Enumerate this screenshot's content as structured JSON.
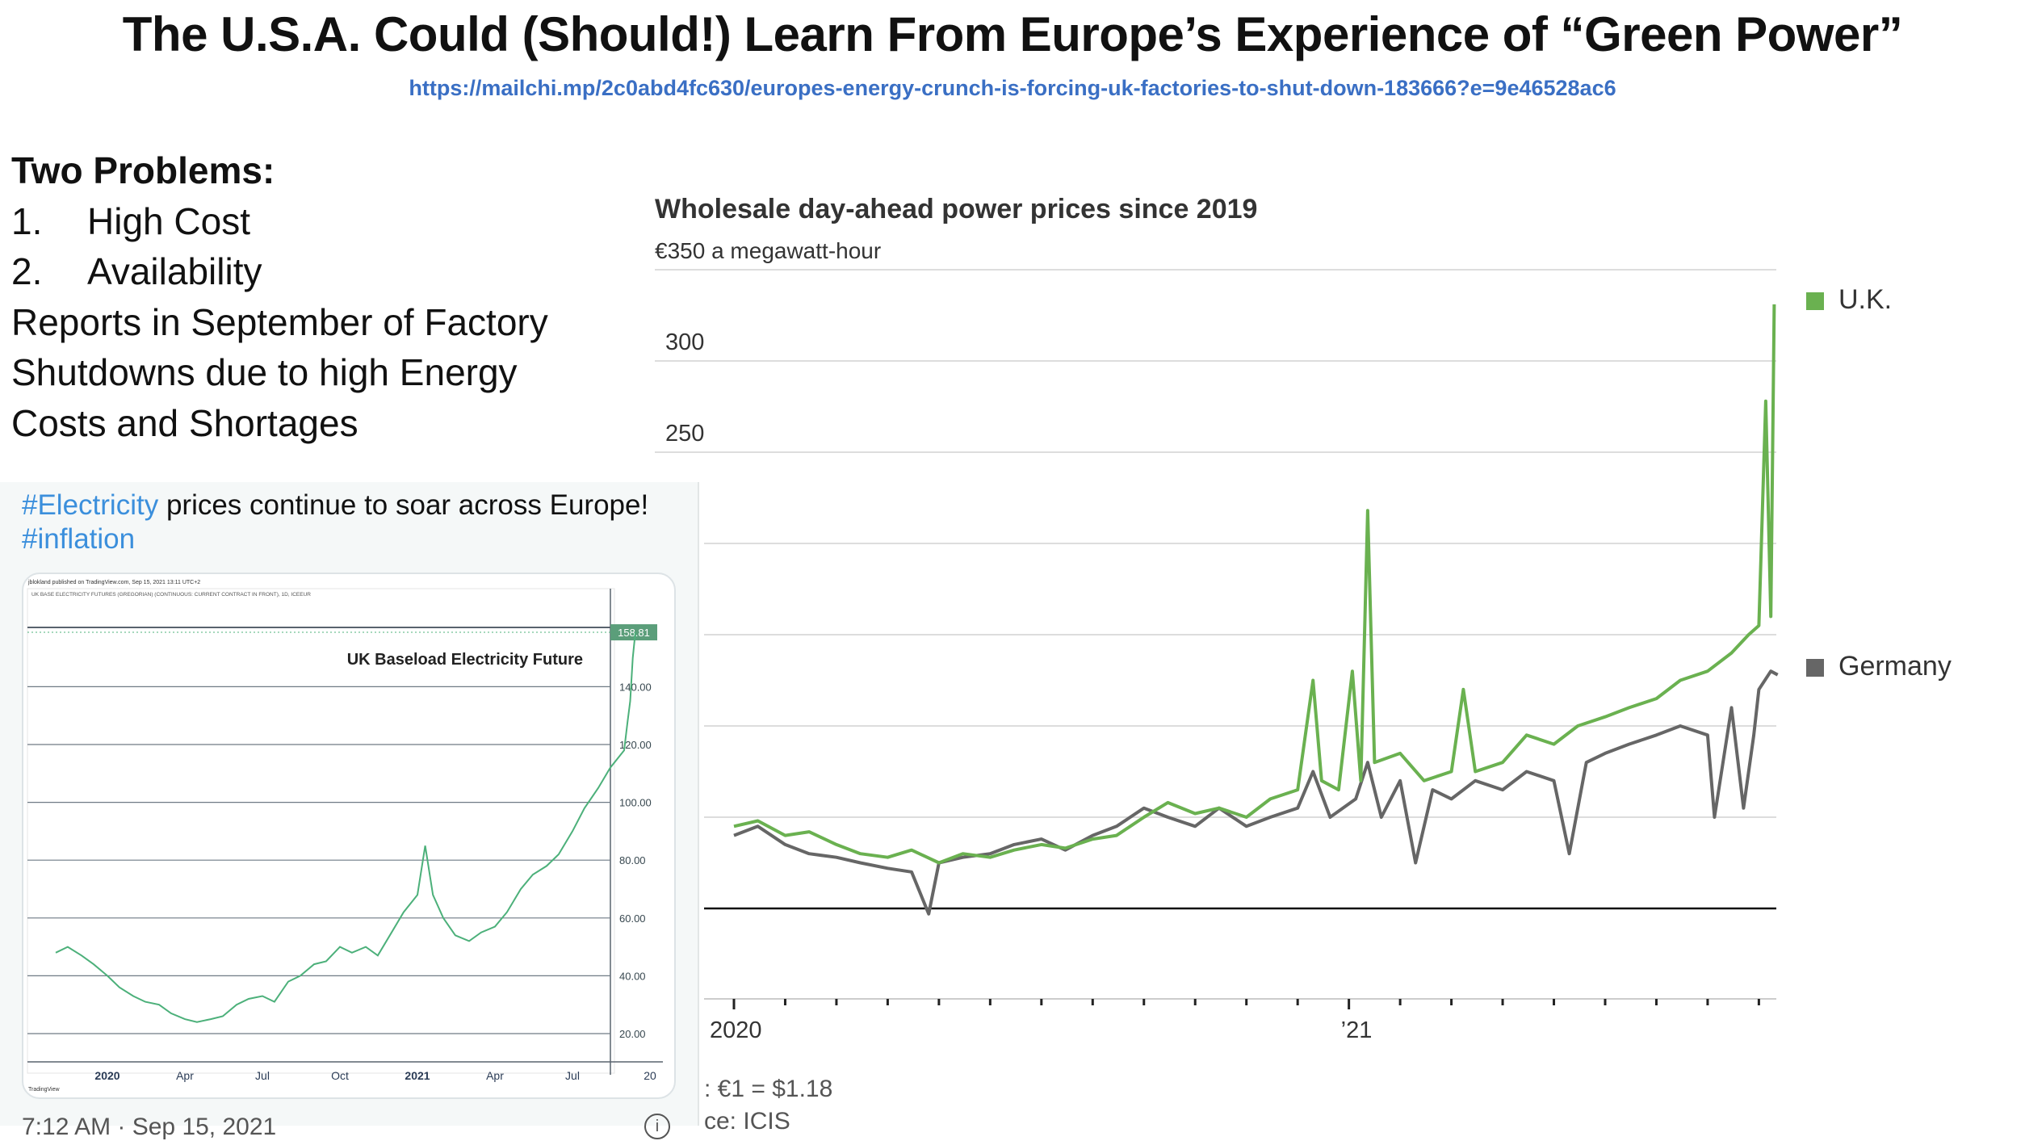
{
  "slide": {
    "title": "The U.S.A. Could (Should!) Learn From Europe’s Experience of “Green Power”",
    "url": "https://mailchi.mp/2c0abd4fc630/europes-energy-crunch-is-forcing-uk-factories-to-shut-down-183666?e=9e46528ac6",
    "problems_heading": "Two Problems:",
    "problems": [
      {
        "num": "1.",
        "text": "High Cost"
      },
      {
        "num": "2.",
        "text": "Availability"
      }
    ],
    "report_lines": [
      "Reports in September of Factory",
      "Shutdowns due to high Energy",
      "Costs and Shortages"
    ]
  },
  "tweet": {
    "hashtag1": "#Electricity",
    "text": " prices continue to soar across Europe!",
    "hashtag2": "#inflation",
    "time": "7:12 AM · Sep 15, 2021",
    "info_icon": "info-icon"
  },
  "footer": {
    "exchange": ": €1 = $1.18",
    "source": "ce: ICIS"
  },
  "chart_data": [
    {
      "type": "line",
      "title": "Wholesale day-ahead power prices since 2019",
      "ylabel": "€350 a megawatt-hour",
      "ylim": [
        0,
        350
      ],
      "y_ticks": [
        0,
        50,
        100,
        150,
        200,
        250,
        300,
        350
      ],
      "y_tick_labels": [
        "",
        "",
        "",
        "",
        "",
        "250",
        "300",
        "€350 a megawatt-hour"
      ],
      "x_tick_labels": [
        {
          "date": "2020-01-01",
          "label": "2020"
        },
        {
          "date": "2021-01-01",
          "label": "’21"
        }
      ],
      "grid": true,
      "legend": "right",
      "series": [
        {
          "name": "U.K.",
          "color": "#6ab150",
          "points": [
            [
              "2020-01-01",
              45
            ],
            [
              "2020-01-15",
              48
            ],
            [
              "2020-02-01",
              40
            ],
            [
              "2020-02-15",
              42
            ],
            [
              "2020-03-01",
              35
            ],
            [
              "2020-03-15",
              30
            ],
            [
              "2020-04-01",
              28
            ],
            [
              "2020-04-15",
              32
            ],
            [
              "2020-05-01",
              25
            ],
            [
              "2020-05-15",
              30
            ],
            [
              "2020-06-01",
              28
            ],
            [
              "2020-06-15",
              32
            ],
            [
              "2020-07-01",
              35
            ],
            [
              "2020-07-15",
              33
            ],
            [
              "2020-08-01",
              38
            ],
            [
              "2020-08-15",
              40
            ],
            [
              "2020-09-01",
              50
            ],
            [
              "2020-09-15",
              58
            ],
            [
              "2020-10-01",
              52
            ],
            [
              "2020-10-15",
              55
            ],
            [
              "2020-11-01",
              50
            ],
            [
              "2020-11-15",
              60
            ],
            [
              "2020-12-01",
              65
            ],
            [
              "2020-12-10",
              125
            ],
            [
              "2020-12-15",
              70
            ],
            [
              "2020-12-25",
              65
            ],
            [
              "2021-01-03",
              130
            ],
            [
              "2021-01-08",
              70
            ],
            [
              "2021-01-12",
              218
            ],
            [
              "2021-01-16",
              80
            ],
            [
              "2021-02-01",
              85
            ],
            [
              "2021-02-15",
              70
            ],
            [
              "2021-03-01",
              75
            ],
            [
              "2021-03-08",
              120
            ],
            [
              "2021-03-15",
              75
            ],
            [
              "2021-04-01",
              80
            ],
            [
              "2021-04-15",
              95
            ],
            [
              "2021-05-01",
              90
            ],
            [
              "2021-05-15",
              100
            ],
            [
              "2021-06-01",
              105
            ],
            [
              "2021-06-15",
              110
            ],
            [
              "2021-07-01",
              115
            ],
            [
              "2021-07-15",
              125
            ],
            [
              "2021-08-01",
              130
            ],
            [
              "2021-08-15",
              140
            ],
            [
              "2021-08-25",
              150
            ],
            [
              "2021-09-01",
              155
            ],
            [
              "2021-09-05",
              278
            ],
            [
              "2021-09-08",
              160
            ],
            [
              "2021-09-10",
              331
            ]
          ]
        },
        {
          "name": "Germany",
          "color": "#666666",
          "points": [
            [
              "2020-01-01",
              40
            ],
            [
              "2020-01-15",
              45
            ],
            [
              "2020-02-01",
              35
            ],
            [
              "2020-02-15",
              30
            ],
            [
              "2020-03-01",
              28
            ],
            [
              "2020-03-15",
              25
            ],
            [
              "2020-04-01",
              22
            ],
            [
              "2020-04-15",
              20
            ],
            [
              "2020-04-25",
              -3
            ],
            [
              "2020-05-01",
              25
            ],
            [
              "2020-05-15",
              28
            ],
            [
              "2020-06-01",
              30
            ],
            [
              "2020-06-15",
              35
            ],
            [
              "2020-07-01",
              38
            ],
            [
              "2020-07-15",
              32
            ],
            [
              "2020-08-01",
              40
            ],
            [
              "2020-08-15",
              45
            ],
            [
              "2020-09-01",
              55
            ],
            [
              "2020-09-15",
              50
            ],
            [
              "2020-10-01",
              45
            ],
            [
              "2020-10-15",
              55
            ],
            [
              "2020-11-01",
              45
            ],
            [
              "2020-11-15",
              50
            ],
            [
              "2020-12-01",
              55
            ],
            [
              "2020-12-10",
              75
            ],
            [
              "2020-12-20",
              50
            ],
            [
              "2021-01-05",
              60
            ],
            [
              "2021-01-12",
              80
            ],
            [
              "2021-01-20",
              50
            ],
            [
              "2021-02-01",
              70
            ],
            [
              "2021-02-10",
              25
            ],
            [
              "2021-02-20",
              65
            ],
            [
              "2021-03-01",
              60
            ],
            [
              "2021-03-15",
              70
            ],
            [
              "2021-04-01",
              65
            ],
            [
              "2021-04-15",
              75
            ],
            [
              "2021-05-01",
              70
            ],
            [
              "2021-05-10",
              30
            ],
            [
              "2021-05-20",
              80
            ],
            [
              "2021-06-01",
              85
            ],
            [
              "2021-06-15",
              90
            ],
            [
              "2021-07-01",
              95
            ],
            [
              "2021-07-15",
              100
            ],
            [
              "2021-08-01",
              95
            ],
            [
              "2021-08-05",
              50
            ],
            [
              "2021-08-15",
              110
            ],
            [
              "2021-08-22",
              55
            ],
            [
              "2021-08-28",
              95
            ],
            [
              "2021-09-01",
              120
            ],
            [
              "2021-09-08",
              130
            ],
            [
              "2021-09-12",
              128
            ]
          ]
        }
      ]
    },
    {
      "type": "line",
      "title": "UK Baseload Electricity Future",
      "header": "jblokland published on TradingView.com, Sep 15, 2021 13:11 UTC+2",
      "subtitle": "UK BASE ELECTRICITY FUTURES (GREGORIAN) (CONTINUOUS: CURRENT CONTRACT IN FRONT), 1D, ICEEUR",
      "brand": "TradingView",
      "last_value_label": "158.81",
      "ylim": [
        10,
        160
      ],
      "y_tick_labels": [
        "20.00",
        "40.00",
        "60.00",
        "80.00",
        "100.00",
        "120.00",
        "140.00"
      ],
      "x_tick_labels": [
        {
          "date": "2020-01-01",
          "label": "2020"
        },
        {
          "date": "2020-04-01",
          "label": "Apr"
        },
        {
          "date": "2020-07-01",
          "label": "Jul"
        },
        {
          "date": "2020-10-01",
          "label": "Oct"
        },
        {
          "date": "2021-01-01",
          "label": "2021"
        },
        {
          "date": "2021-04-01",
          "label": "Apr"
        },
        {
          "date": "2021-07-01",
          "label": "Jul"
        },
        {
          "date": "2021-10-01",
          "label": "20"
        }
      ],
      "grid": true,
      "color": "#4cb07a",
      "points": [
        [
          "2019-11-01",
          48
        ],
        [
          "2019-11-15",
          50
        ],
        [
          "2019-12-01",
          47
        ],
        [
          "2019-12-15",
          44
        ],
        [
          "2020-01-01",
          40
        ],
        [
          "2020-01-15",
          36
        ],
        [
          "2020-02-01",
          33
        ],
        [
          "2020-02-15",
          31
        ],
        [
          "2020-03-01",
          30
        ],
        [
          "2020-03-15",
          27
        ],
        [
          "2020-04-01",
          25
        ],
        [
          "2020-04-15",
          24
        ],
        [
          "2020-05-01",
          25
        ],
        [
          "2020-05-15",
          26
        ],
        [
          "2020-06-01",
          30
        ],
        [
          "2020-06-15",
          32
        ],
        [
          "2020-07-01",
          33
        ],
        [
          "2020-07-15",
          31
        ],
        [
          "2020-08-01",
          38
        ],
        [
          "2020-08-15",
          40
        ],
        [
          "2020-09-01",
          44
        ],
        [
          "2020-09-15",
          45
        ],
        [
          "2020-10-01",
          50
        ],
        [
          "2020-10-15",
          48
        ],
        [
          "2020-11-01",
          50
        ],
        [
          "2020-11-15",
          47
        ],
        [
          "2020-12-01",
          55
        ],
        [
          "2020-12-15",
          62
        ],
        [
          "2021-01-01",
          68
        ],
        [
          "2021-01-10",
          85
        ],
        [
          "2021-01-19",
          68
        ],
        [
          "2021-02-01",
          60
        ],
        [
          "2021-02-15",
          54
        ],
        [
          "2021-03-01",
          52
        ],
        [
          "2021-03-15",
          55
        ],
        [
          "2021-04-01",
          57
        ],
        [
          "2021-04-15",
          62
        ],
        [
          "2021-05-01",
          70
        ],
        [
          "2021-05-15",
          75
        ],
        [
          "2021-06-01",
          78
        ],
        [
          "2021-06-15",
          82
        ],
        [
          "2021-07-01",
          90
        ],
        [
          "2021-07-15",
          98
        ],
        [
          "2021-08-01",
          105
        ],
        [
          "2021-08-15",
          112
        ],
        [
          "2021-09-01",
          118
        ],
        [
          "2021-09-05",
          128
        ],
        [
          "2021-09-08",
          135
        ],
        [
          "2021-09-11",
          150
        ],
        [
          "2021-09-14",
          158.81
        ]
      ]
    }
  ]
}
